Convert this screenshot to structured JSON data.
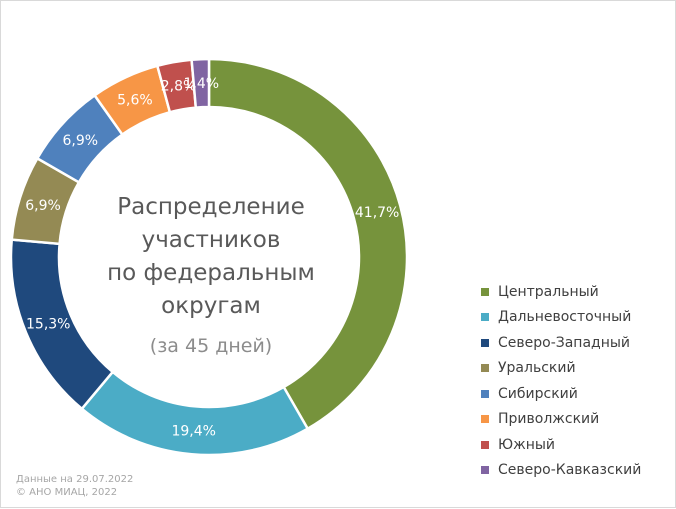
{
  "chart_data": {
    "type": "pie",
    "donut": true,
    "title": "Распределение участников по федеральным округам",
    "subtitle": "(за 45 дней)",
    "legend_position": "right",
    "slices": [
      {
        "name": "Центральный",
        "value": 41.7,
        "label": "41,7%",
        "color": "#76933c"
      },
      {
        "name": "Дальневосточный",
        "value": 19.4,
        "label": "19,4%",
        "color": "#4bacc6"
      },
      {
        "name": "Северо-Западный",
        "value": 15.3,
        "label": "15,3%",
        "color": "#1f497d"
      },
      {
        "name": "Уральский",
        "value": 6.9,
        "label": "6,9%",
        "color": "#948a54"
      },
      {
        "name": "Сибирский",
        "value": 6.9,
        "label": "6,9%",
        "color": "#4f81bd"
      },
      {
        "name": "Приволжский",
        "value": 5.6,
        "label": "5,6%",
        "color": "#f79646"
      },
      {
        "name": "Южный",
        "value": 2.8,
        "label": "2,8%",
        "color": "#c0504d"
      },
      {
        "name": "Северо-Кавказский",
        "value": 1.4,
        "label": "1,4%",
        "color": "#8064a2"
      }
    ]
  },
  "center": {
    "title": "Распределение\nучастников\nпо федеральным\nокругам",
    "subtitle": "(за 45 дней)"
  },
  "footer": {
    "date_line": "Данные на 29.07.2022",
    "copyright_line": "© АНО МИАЦ, 2022"
  }
}
